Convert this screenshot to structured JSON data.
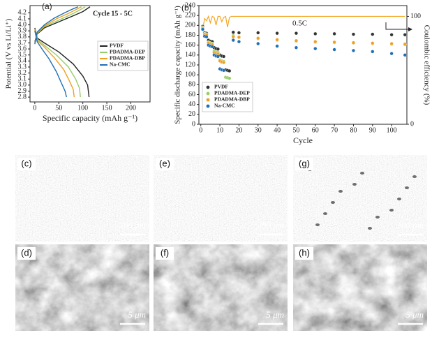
{
  "chart_data": [
    {
      "type": "line",
      "panel": "(a)",
      "annotation": "Cycle 15 - 5C",
      "x_label": "Specific capacity (mAh g⁻¹)",
      "y_label": "Potential (V vs Li/Li⁺)",
      "xlim": [
        -10,
        240
      ],
      "xticks": [
        0,
        50,
        100,
        150,
        200
      ],
      "ylim": [
        2.72,
        4.32
      ],
      "yticks": [
        2.8,
        2.9,
        {
          "value": 3,
          "label": "3.0"
        },
        3.1,
        3.2,
        3.3,
        3.4,
        3.5,
        3.6,
        3.7,
        3.8,
        3.9,
        {
          "value": 4,
          "label": "4.0"
        },
        4.1,
        4.2
      ],
      "legend": "center right",
      "series": [
        {
          "name": "PVDF",
          "color": "#222222",
          "x": [
            0,
            5,
            20,
            50,
            80,
            100,
            115,
            null,
            0,
            5,
            20,
            50,
            80,
            100,
            110,
            113
          ],
          "values": [
            3.72,
            3.85,
            3.95,
            4.05,
            4.15,
            4.22,
            4.3,
            null,
            3.95,
            3.78,
            3.7,
            3.55,
            3.35,
            3.15,
            3.0,
            2.8
          ]
        },
        {
          "name": "PDADMA-DEP",
          "color": "#9acd6a",
          "x": [
            0,
            5,
            20,
            50,
            75,
            92,
            105,
            null,
            0,
            5,
            20,
            45,
            70,
            85,
            93,
            95
          ],
          "values": [
            3.7,
            3.86,
            3.97,
            4.08,
            4.17,
            4.24,
            4.3,
            null,
            3.93,
            3.76,
            3.66,
            3.5,
            3.3,
            3.1,
            2.95,
            2.8
          ]
        },
        {
          "name": "PDADMA-DBP",
          "color": "#f0a020",
          "x": [
            0,
            5,
            20,
            45,
            70,
            85,
            97,
            null,
            0,
            5,
            20,
            40,
            60,
            72,
            80,
            82
          ],
          "values": [
            3.69,
            3.87,
            3.98,
            4.1,
            4.19,
            4.25,
            4.3,
            null,
            3.92,
            3.74,
            3.63,
            3.46,
            3.26,
            3.07,
            2.93,
            2.8
          ]
        },
        {
          "name": "Na-CMC",
          "color": "#1f6fb5",
          "x": [
            0,
            5,
            20,
            40,
            62,
            78,
            90,
            null,
            0,
            5,
            15,
            30,
            45,
            55,
            63,
            66
          ],
          "values": [
            3.68,
            3.88,
            4.0,
            4.11,
            4.2,
            4.26,
            4.3,
            null,
            3.9,
            3.72,
            3.6,
            3.43,
            3.22,
            3.04,
            2.9,
            2.8
          ]
        }
      ]
    },
    {
      "type": "scatter",
      "panel": "(b)",
      "annotation": "0.5C",
      "x_label": "Cycle",
      "y_label": "Specific discharge capacity (mAh g⁻¹)",
      "y2_label": "Coulombic efficiency (%)",
      "xlim": [
        -1,
        108
      ],
      "xticks": [
        0,
        10,
        20,
        30,
        40,
        50,
        60,
        70,
        80,
        90,
        100
      ],
      "ylim": [
        0,
        240
      ],
      "yticks": [
        0,
        20,
        40,
        60,
        80,
        100,
        120,
        140,
        160,
        180,
        200,
        220,
        240
      ],
      "y2lim": [
        0,
        110
      ],
      "y2ticks": [
        0,
        100
      ],
      "legend": "lower left",
      "series": [
        {
          "name": "PVDF",
          "color": "#333333",
          "x": [
            1,
            2,
            3,
            4,
            5,
            6,
            7,
            8,
            9,
            10,
            11,
            12,
            13,
            14,
            15,
            17,
            20,
            30,
            40,
            50,
            60,
            70,
            80,
            90,
            100,
            107
          ],
          "values": [
            198,
            185,
            184,
            170,
            168,
            167,
            155,
            153,
            152,
            140,
            138,
            137,
            110,
            109,
            108,
            186,
            185,
            185,
            184,
            184,
            183,
            183,
            182,
            182,
            181,
            181
          ]
        },
        {
          "name": "PDADMA-DEP",
          "color": "#9acd6a",
          "x": [
            1,
            2,
            3,
            4,
            5,
            6,
            7,
            8,
            9,
            10,
            11,
            12,
            13,
            14,
            15,
            17,
            20,
            30,
            40,
            50,
            60,
            70,
            80,
            90,
            100,
            107
          ],
          "values": [
            196,
            183,
            182,
            166,
            164,
            163,
            148,
            146,
            145,
            130,
            128,
            127,
            95,
            94,
            93,
            179,
            176,
            173,
            170,
            168,
            166,
            165,
            164,
            163,
            162,
            161
          ]
        },
        {
          "name": "PDADMA-DBP",
          "color": "#f0a020",
          "x": [
            1,
            2,
            3,
            4,
            5,
            6,
            7,
            8,
            9,
            10,
            11,
            12,
            13,
            14,
            15,
            17,
            20,
            30,
            40,
            50,
            60,
            70,
            80,
            90,
            100,
            107
          ],
          "values": [
            194,
            182,
            181,
            164,
            162,
            161,
            145,
            143,
            142,
            128,
            126,
            125,
            82,
            80,
            79,
            177,
            176,
            174,
            171,
            169,
            167,
            166,
            165,
            164,
            163,
            162
          ]
        },
        {
          "name": "Na-CMC",
          "color": "#1f6fb5",
          "x": [
            1,
            2,
            3,
            4,
            5,
            6,
            7,
            8,
            9,
            10,
            11,
            12,
            13,
            14,
            15,
            17,
            20,
            30,
            40,
            50,
            60,
            70,
            80,
            90,
            100,
            107
          ],
          "values": [
            192,
            178,
            177,
            160,
            158,
            157,
            140,
            138,
            137,
            112,
            110,
            109,
            66,
            65,
            64,
            170,
            167,
            163,
            158,
            155,
            153,
            151,
            149,
            147,
            143,
            140
          ]
        }
      ],
      "efficiency": {
        "color": "#f5a623",
        "axis": "y2",
        "x": [
          1,
          2,
          3,
          4,
          5,
          6,
          7,
          8,
          9,
          10,
          11,
          12,
          13,
          14,
          15,
          16,
          17,
          18,
          19,
          20,
          30,
          40,
          50,
          60,
          70,
          80,
          90,
          100,
          107
        ],
        "values": [
          88,
          98,
          96,
          100,
          94,
          100,
          99,
          92,
          100,
          100,
          95,
          99,
          100,
          90,
          99,
          100,
          100,
          100,
          100,
          100,
          100,
          100,
          100,
          100,
          100,
          100,
          100,
          100,
          100
        ]
      }
    }
  ],
  "images": [
    {
      "label": "(c)",
      "scale": "200 μm"
    },
    {
      "label": "(e)",
      "scale": "200 μm"
    },
    {
      "label": "(g)",
      "scale": "200 μm"
    },
    {
      "label": "(d)",
      "scale": "5 μm"
    },
    {
      "label": "(f)",
      "scale": "5 μm"
    },
    {
      "label": "(h)",
      "scale": "5 μm"
    }
  ]
}
